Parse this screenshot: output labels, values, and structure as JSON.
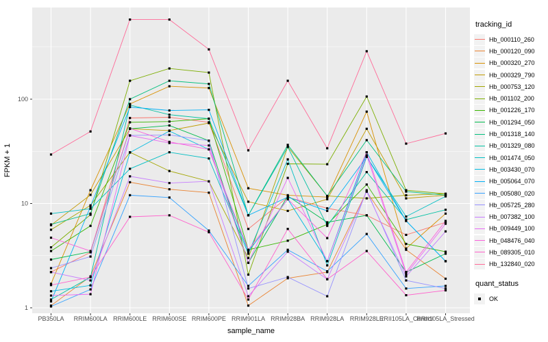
{
  "chart_data": {
    "type": "line",
    "title": "",
    "xlabel": "sample_name",
    "ylabel": "FPKM + 1",
    "y_scale": "log10",
    "ylim": [
      0.89,
      745
    ],
    "y_ticks": [
      "1",
      "10",
      "100"
    ],
    "grid": true,
    "legend_position": "right",
    "legend_title": "tracking_id",
    "quant_legend": {
      "title": "quant_status",
      "items": [
        {
          "label": "OK"
        }
      ]
    },
    "categories": [
      "PB350LA",
      "RRIM600LA",
      "RRIM600LE",
      "RRIM600SE",
      "RRIM600PE",
      "RRIM901LA",
      "RRIM928BA",
      "RRIM928LA",
      "RRIM928LE",
      "RRII105LA_Control",
      "RRII105LA_Stressed"
    ],
    "series": [
      {
        "name": "Hb_000110_260",
        "color": "#F8766D",
        "values": [
          2.2,
          3.4,
          66,
          67,
          60,
          5.7,
          11.5,
          9.0,
          7.7,
          5.0,
          6.6
        ]
      },
      {
        "name": "Hb_000120_090",
        "color": "#EA8331",
        "values": [
          1.05,
          2.0,
          16,
          13.7,
          12.7,
          1.05,
          1.92,
          2.2,
          13,
          3.6,
          1.9
        ]
      },
      {
        "name": "Hb_000320_270",
        "color": "#D89000",
        "values": [
          1.7,
          13.4,
          90,
          133,
          128,
          14,
          12,
          11.5,
          76,
          3.7,
          8.0
        ]
      },
      {
        "name": "Hb_000329_790",
        "color": "#C09B00",
        "values": [
          6.2,
          12.1,
          52,
          50,
          59,
          10.4,
          8.5,
          11,
          52,
          11.2,
          12
        ]
      },
      {
        "name": "Hb_000753_120",
        "color": "#A3A500",
        "values": [
          5.6,
          9.6,
          31,
          20.5,
          16.3,
          3.0,
          35,
          11.8,
          11.2,
          12,
          12.4
        ]
      },
      {
        "name": "Hb_001102_200",
        "color": "#7CAE00",
        "values": [
          3.8,
          7.8,
          150,
          197,
          180,
          2.08,
          24,
          23.8,
          106,
          13.4,
          12.4
        ]
      },
      {
        "name": "Hb_001226_170",
        "color": "#39B600",
        "values": [
          3.5,
          6.1,
          60,
          61,
          65,
          3.6,
          4.4,
          6.3,
          15.2,
          4.1,
          3.45
        ]
      },
      {
        "name": "Hb_001294_050",
        "color": "#00BB4E",
        "values": [
          2.9,
          3.45,
          52,
          56,
          40,
          2.7,
          11.8,
          6.6,
          7.7,
          2.2,
          3.3
        ]
      },
      {
        "name": "Hb_001318_140",
        "color": "#00BF7D",
        "values": [
          6.3,
          8.0,
          100,
          150,
          140,
          7.7,
          36.5,
          11.8,
          40.5,
          13,
          12
        ]
      },
      {
        "name": "Hb_001329_080",
        "color": "#00C1A3",
        "values": [
          1.2,
          1.97,
          88,
          71,
          65,
          7.7,
          34.8,
          6.1,
          20,
          7.0,
          8.7
        ]
      },
      {
        "name": "Hb_001474_050",
        "color": "#00BFC4",
        "values": [
          8.0,
          8.9,
          21.5,
          31,
          27,
          3.3,
          26.5,
          2.55,
          28,
          7.5,
          11.7
        ]
      },
      {
        "name": "Hb_003430_070",
        "color": "#00BAE0",
        "values": [
          1.44,
          1.64,
          30.8,
          49.5,
          33,
          3.45,
          11,
          2.8,
          31,
          6.8,
          2.79
        ]
      },
      {
        "name": "Hb_005064_070",
        "color": "#00B0F6",
        "values": [
          1.15,
          9.35,
          84,
          78,
          79,
          7.7,
          11.5,
          8.5,
          28,
          6.8,
          2.8
        ]
      },
      {
        "name": "Hb_005080_020",
        "color": "#35A2FF",
        "values": [
          1.03,
          1.5,
          12,
          11.4,
          5.5,
          1.62,
          3.6,
          2.24,
          5.1,
          1.53,
          1.62
        ]
      },
      {
        "name": "Hb_005725_280",
        "color": "#9590FF",
        "values": [
          2.4,
          3.1,
          45,
          45.5,
          40,
          1.53,
          1.97,
          1.29,
          13.4,
          1.83,
          1.53
        ]
      },
      {
        "name": "Hb_007382_100",
        "color": "#C77CFF",
        "values": [
          2.2,
          1.83,
          18.2,
          15.7,
          16.3,
          1.29,
          3.45,
          1.88,
          13,
          2.0,
          5.4
        ]
      },
      {
        "name": "Hb_009449_100",
        "color": "#E76BF3",
        "values": [
          1.31,
          1.35,
          44.8,
          38,
          36,
          2.7,
          17.6,
          2.8,
          29,
          2.1,
          6.4
        ]
      },
      {
        "name": "Hb_048476_040",
        "color": "#FA62DB",
        "values": [
          4.7,
          3.5,
          52.5,
          39,
          33,
          3.6,
          11,
          4.66,
          31,
          2.2,
          6.8
        ]
      },
      {
        "name": "Hb_089305_010",
        "color": "#FF61CC",
        "values": [
          1.65,
          1.97,
          7.45,
          7.7,
          5.3,
          1.2,
          5.7,
          1.88,
          3.5,
          1.32,
          1.47
        ]
      },
      {
        "name": "Hb_132840_020",
        "color": "#FF6A98",
        "values": [
          29.5,
          49,
          580,
          580,
          300,
          32.3,
          150,
          33.8,
          288,
          37.5,
          46.9
        ]
      }
    ]
  },
  "colors": {
    "background": "#FFFFFF",
    "panel": "#EBEBEB",
    "grid": "#FFFFFF",
    "point": "#000000",
    "tick_text": "#4D4D4D",
    "axis_title": "#000000",
    "legend_key_bg": "#F2F2F2"
  }
}
